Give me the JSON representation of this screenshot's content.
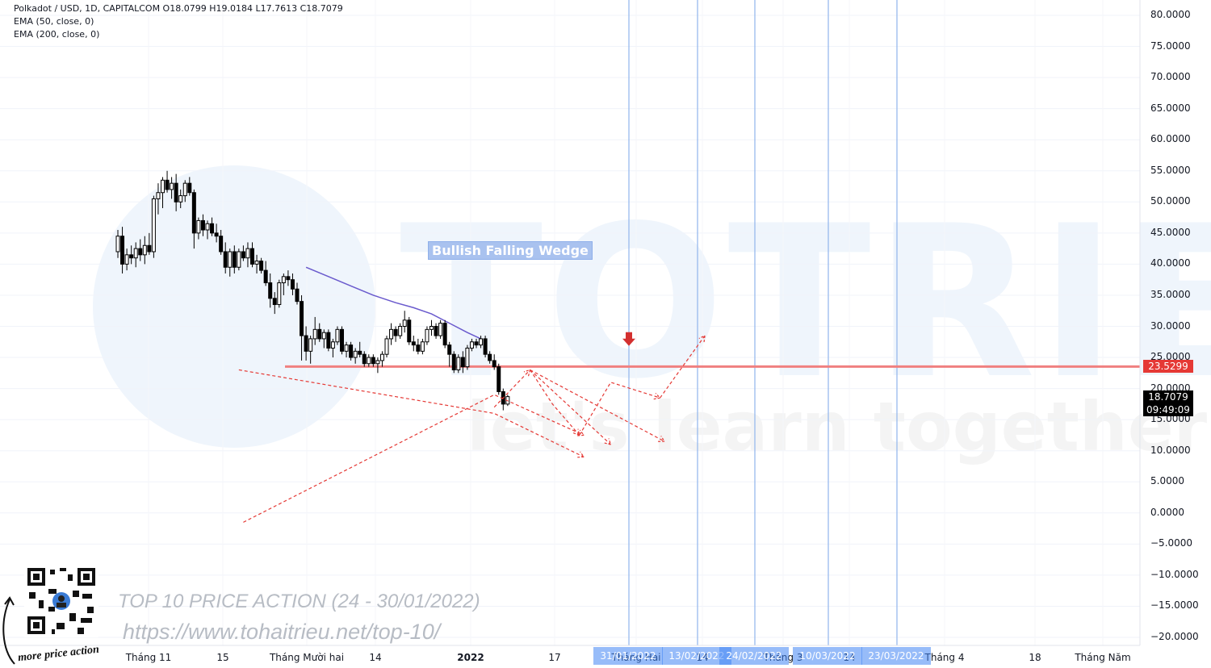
{
  "header": {
    "symbol_line": "Polkadot / USD, 1D, CAPITALCOM  O18.0799  H19.0184  L17.7613  C18.7079",
    "ema50": "EMA (50, close, 0)",
    "ema200": "EMA (200, close, 0)"
  },
  "watermark": {
    "brand": "TOTRIEU",
    "tagline": "let's learn together",
    "title": "TOP 10 PRICE ACTION (24 - 30/01/2022)",
    "url": "https://www.tohaitrieu.net/top-10/",
    "signature": "more price action"
  },
  "colors": {
    "bull": "#ffffff",
    "bear": "#000000",
    "ema": "#6a5acd",
    "projection": "#e53935",
    "resistance": "#f08080",
    "vline": "#90b4ec",
    "price_tag": "#000000",
    "level_tag": "#e53935"
  },
  "chart_data": {
    "type": "candlestick",
    "title": "Polkadot / USD, 1D, CAPITALCOM",
    "ylim": [
      -22,
      82
    ],
    "y_ticks": [
      "80.0000",
      "75.0000",
      "70.0000",
      "65.0000",
      "60.0000",
      "55.0000",
      "50.0000",
      "45.0000",
      "40.0000",
      "35.0000",
      "30.0000",
      "25.0000",
      "20.0000",
      "15.0000",
      "10.0000",
      "5.0000",
      "0.0000",
      "−5.0000",
      "−10.0000",
      "−15.0000",
      "−20.0000"
    ],
    "x_labels": [
      {
        "label": "Tháng 11",
        "bold": false
      },
      {
        "label": "15",
        "bold": false
      },
      {
        "label": "Tháng Mười hai",
        "bold": false
      },
      {
        "label": "14",
        "bold": false
      },
      {
        "label": "2022",
        "bold": true
      },
      {
        "label": "17",
        "bold": false
      },
      {
        "label": "Tháng Hai",
        "bold": false
      },
      {
        "label": "14",
        "bold": false
      },
      {
        "label": "Tháng 3",
        "bold": false
      },
      {
        "label": "14",
        "bold": false
      },
      {
        "label": "Tháng 4",
        "bold": false
      },
      {
        "label": "18",
        "bold": false
      },
      {
        "label": "Tháng Năm",
        "bold": false
      }
    ],
    "date_markers": [
      "31/01/2022",
      "13/02/2022",
      "24/02/2022",
      "10/03/2022",
      "23/03/2022"
    ],
    "current_price": "18.7079",
    "countdown": "09:49:09",
    "level_value": 23.5299,
    "level_label": "23.5299",
    "pattern_label": "Bullish Falling Wedge",
    "candles": [
      {
        "o": 42.0,
        "h": 45.5,
        "l": 41.0,
        "c": 44.5
      },
      {
        "o": 44.5,
        "h": 46.0,
        "l": 38.5,
        "c": 40.0
      },
      {
        "o": 40.0,
        "h": 42.5,
        "l": 39.0,
        "c": 41.5
      },
      {
        "o": 41.5,
        "h": 43.0,
        "l": 40.0,
        "c": 41.0
      },
      {
        "o": 41.0,
        "h": 43.5,
        "l": 39.5,
        "c": 42.5
      },
      {
        "o": 42.5,
        "h": 44.0,
        "l": 40.5,
        "c": 41.5
      },
      {
        "o": 41.5,
        "h": 44.5,
        "l": 40.0,
        "c": 43.0
      },
      {
        "o": 43.0,
        "h": 45.0,
        "l": 41.5,
        "c": 42.0
      },
      {
        "o": 42.0,
        "h": 51.0,
        "l": 41.0,
        "c": 50.5
      },
      {
        "o": 50.5,
        "h": 53.0,
        "l": 48.0,
        "c": 51.5
      },
      {
        "o": 51.5,
        "h": 54.0,
        "l": 49.0,
        "c": 53.5
      },
      {
        "o": 53.5,
        "h": 55.0,
        "l": 51.5,
        "c": 52.0
      },
      {
        "o": 52.0,
        "h": 54.0,
        "l": 50.5,
        "c": 53.0
      },
      {
        "o": 53.0,
        "h": 54.5,
        "l": 48.5,
        "c": 50.0
      },
      {
        "o": 50.0,
        "h": 52.0,
        "l": 49.0,
        "c": 51.0
      },
      {
        "o": 51.0,
        "h": 53.5,
        "l": 50.0,
        "c": 53.0
      },
      {
        "o": 53.0,
        "h": 54.0,
        "l": 51.0,
        "c": 51.5
      },
      {
        "o": 51.5,
        "h": 52.0,
        "l": 42.5,
        "c": 45.0
      },
      {
        "o": 45.0,
        "h": 47.5,
        "l": 44.0,
        "c": 47.0
      },
      {
        "o": 47.0,
        "h": 48.0,
        "l": 44.5,
        "c": 45.5
      },
      {
        "o": 45.5,
        "h": 47.0,
        "l": 44.0,
        "c": 46.5
      },
      {
        "o": 46.5,
        "h": 47.5,
        "l": 44.5,
        "c": 45.0
      },
      {
        "o": 45.0,
        "h": 46.5,
        "l": 43.5,
        "c": 44.5
      },
      {
        "o": 44.5,
        "h": 45.5,
        "l": 41.5,
        "c": 42.0
      },
      {
        "o": 42.0,
        "h": 43.5,
        "l": 38.5,
        "c": 39.5
      },
      {
        "o": 39.5,
        "h": 42.5,
        "l": 38.0,
        "c": 42.0
      },
      {
        "o": 42.0,
        "h": 43.0,
        "l": 38.5,
        "c": 39.5
      },
      {
        "o": 39.5,
        "h": 42.5,
        "l": 39.0,
        "c": 42.0
      },
      {
        "o": 42.0,
        "h": 43.0,
        "l": 40.5,
        "c": 41.0
      },
      {
        "o": 41.0,
        "h": 43.5,
        "l": 39.5,
        "c": 42.5
      },
      {
        "o": 42.5,
        "h": 43.5,
        "l": 39.5,
        "c": 40.0
      },
      {
        "o": 40.0,
        "h": 41.5,
        "l": 38.5,
        "c": 40.5
      },
      {
        "o": 40.5,
        "h": 41.0,
        "l": 38.5,
        "c": 39.0
      },
      {
        "o": 39.0,
        "h": 40.5,
        "l": 36.5,
        "c": 37.0
      },
      {
        "o": 37.0,
        "h": 38.5,
        "l": 33.0,
        "c": 34.5
      },
      {
        "o": 34.5,
        "h": 35.5,
        "l": 32.0,
        "c": 33.5
      },
      {
        "o": 33.5,
        "h": 37.5,
        "l": 33.0,
        "c": 37.0
      },
      {
        "o": 37.0,
        "h": 38.5,
        "l": 35.0,
        "c": 38.0
      },
      {
        "o": 38.0,
        "h": 39.0,
        "l": 36.5,
        "c": 37.5
      },
      {
        "o": 37.5,
        "h": 38.5,
        "l": 35.0,
        "c": 36.0
      },
      {
        "o": 36.0,
        "h": 37.0,
        "l": 33.5,
        "c": 34.0
      },
      {
        "o": 34.0,
        "h": 35.0,
        "l": 24.5,
        "c": 28.5
      },
      {
        "o": 28.5,
        "h": 30.0,
        "l": 24.5,
        "c": 26.0
      },
      {
        "o": 26.0,
        "h": 28.5,
        "l": 24.0,
        "c": 28.0
      },
      {
        "o": 28.0,
        "h": 31.5,
        "l": 27.0,
        "c": 29.5
      },
      {
        "o": 29.5,
        "h": 30.5,
        "l": 27.5,
        "c": 28.0
      },
      {
        "o": 28.0,
        "h": 29.5,
        "l": 26.5,
        "c": 29.0
      },
      {
        "o": 29.0,
        "h": 29.5,
        "l": 26.0,
        "c": 26.5
      },
      {
        "o": 26.5,
        "h": 28.0,
        "l": 25.0,
        "c": 27.5
      },
      {
        "o": 27.5,
        "h": 30.0,
        "l": 27.0,
        "c": 29.5
      },
      {
        "o": 29.5,
        "h": 30.0,
        "l": 25.5,
        "c": 26.0
      },
      {
        "o": 26.0,
        "h": 27.5,
        "l": 25.0,
        "c": 27.0
      },
      {
        "o": 27.0,
        "h": 27.5,
        "l": 24.5,
        "c": 25.0
      },
      {
        "o": 25.0,
        "h": 26.5,
        "l": 24.0,
        "c": 26.0
      },
      {
        "o": 26.0,
        "h": 27.5,
        "l": 25.0,
        "c": 25.5
      },
      {
        "o": 25.5,
        "h": 26.0,
        "l": 23.5,
        "c": 24.0
      },
      {
        "o": 24.0,
        "h": 25.5,
        "l": 23.5,
        "c": 25.0
      },
      {
        "o": 25.0,
        "h": 25.5,
        "l": 23.5,
        "c": 24.0
      },
      {
        "o": 24.0,
        "h": 25.0,
        "l": 22.5,
        "c": 24.5
      },
      {
        "o": 24.5,
        "h": 26.0,
        "l": 23.5,
        "c": 25.5
      },
      {
        "o": 25.5,
        "h": 28.5,
        "l": 25.0,
        "c": 28.0
      },
      {
        "o": 28.0,
        "h": 30.5,
        "l": 27.0,
        "c": 29.5
      },
      {
        "o": 29.5,
        "h": 30.0,
        "l": 27.5,
        "c": 28.5
      },
      {
        "o": 28.5,
        "h": 30.5,
        "l": 28.0,
        "c": 30.0
      },
      {
        "o": 30.0,
        "h": 32.5,
        "l": 29.0,
        "c": 31.0
      },
      {
        "o": 31.0,
        "h": 31.5,
        "l": 27.0,
        "c": 27.5
      },
      {
        "o": 27.5,
        "h": 28.5,
        "l": 26.0,
        "c": 27.0
      },
      {
        "o": 27.0,
        "h": 28.0,
        "l": 25.5,
        "c": 26.0
      },
      {
        "o": 26.0,
        "h": 28.0,
        "l": 25.5,
        "c": 27.5
      },
      {
        "o": 27.5,
        "h": 30.0,
        "l": 27.0,
        "c": 29.5
      },
      {
        "o": 29.5,
        "h": 31.0,
        "l": 28.5,
        "c": 30.0
      },
      {
        "o": 30.0,
        "h": 30.5,
        "l": 28.0,
        "c": 28.5
      },
      {
        "o": 28.5,
        "h": 31.0,
        "l": 28.0,
        "c": 30.5
      },
      {
        "o": 30.5,
        "h": 31.0,
        "l": 26.5,
        "c": 27.0
      },
      {
        "o": 27.0,
        "h": 27.5,
        "l": 23.5,
        "c": 25.5
      },
      {
        "o": 25.5,
        "h": 26.0,
        "l": 22.5,
        "c": 23.0
      },
      {
        "o": 23.0,
        "h": 25.5,
        "l": 22.5,
        "c": 25.0
      },
      {
        "o": 25.0,
        "h": 26.0,
        "l": 22.5,
        "c": 23.5
      },
      {
        "o": 23.5,
        "h": 27.0,
        "l": 23.0,
        "c": 26.5
      },
      {
        "o": 26.5,
        "h": 28.0,
        "l": 26.0,
        "c": 27.5
      },
      {
        "o": 27.5,
        "h": 28.0,
        "l": 26.5,
        "c": 27.0
      },
      {
        "o": 27.0,
        "h": 28.5,
        "l": 26.5,
        "c": 28.0
      },
      {
        "o": 28.0,
        "h": 28.5,
        "l": 25.0,
        "c": 25.5
      },
      {
        "o": 25.5,
        "h": 26.0,
        "l": 24.0,
        "c": 24.5
      },
      {
        "o": 24.5,
        "h": 25.5,
        "l": 23.0,
        "c": 23.5
      },
      {
        "o": 23.5,
        "h": 24.0,
        "l": 19.0,
        "c": 19.5
      },
      {
        "o": 19.5,
        "h": 20.0,
        "l": 16.5,
        "c": 17.5
      },
      {
        "o": 17.5,
        "h": 19.0,
        "l": 17.2,
        "c": 18.7
      }
    ],
    "ema50": [
      [
        42,
        39.5
      ],
      [
        47,
        38.0
      ],
      [
        52,
        36.5
      ],
      [
        57,
        35.0
      ],
      [
        62,
        33.8
      ],
      [
        66,
        33.0
      ],
      [
        70,
        32.0
      ],
      [
        74,
        30.5
      ],
      [
        78,
        29.0
      ],
      [
        81,
        28.0
      ]
    ],
    "projections": [
      [
        [
          28,
          -1.5
        ],
        [
          84,
          19.0
        ],
        [
          104,
          12.5
        ]
      ],
      [
        [
          27,
          23.0
        ],
        [
          84,
          16.0
        ],
        [
          104,
          9.0
        ]
      ],
      [
        [
          84,
          17.0
        ],
        [
          88,
          20.0
        ],
        [
          92,
          23.0
        ]
      ],
      [
        [
          92,
          23.0
        ],
        [
          97,
          17.5
        ],
        [
          103,
          12.5
        ]
      ],
      [
        [
          103,
          12.5
        ],
        [
          110,
          21.0
        ],
        [
          121,
          18.5
        ]
      ],
      [
        [
          121,
          18.5
        ],
        [
          131,
          28.5
        ]
      ],
      [
        [
          92,
          23.0
        ],
        [
          110,
          11.0
        ]
      ],
      [
        [
          92,
          23.0
        ],
        [
          122,
          11.5
        ]
      ]
    ],
    "drop_marker_value": 27.5,
    "dates_vlines_index": [
      96,
      107,
      112,
      119,
      125
    ]
  }
}
